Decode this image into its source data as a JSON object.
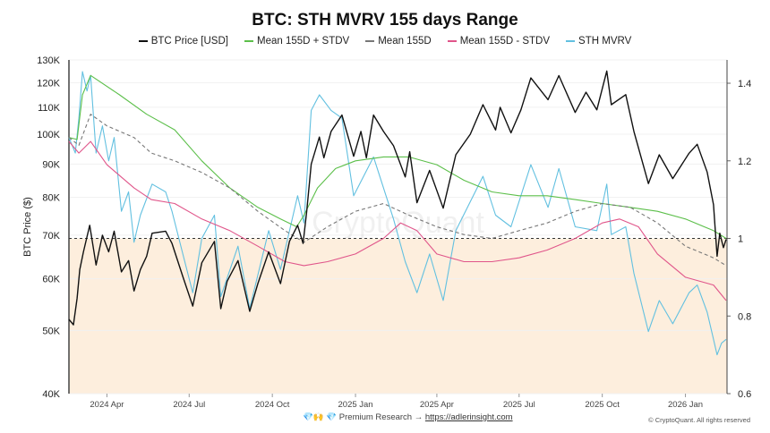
{
  "chart_data": {
    "type": "line",
    "title": "BTC: STH MVRV 155 days Range",
    "ylabel": "BTC Price ($)",
    "y_left": {
      "scale": "log",
      "range": [
        40000,
        130000
      ],
      "ticks": [
        40000,
        50000,
        60000,
        70000,
        80000,
        90000,
        100000,
        110000,
        120000,
        130000
      ],
      "tick_labels": [
        "40K",
        "50K",
        "60K",
        "70K",
        "80K",
        "90K",
        "100K",
        "110K",
        "120K",
        "130K"
      ]
    },
    "y_right": {
      "scale": "linear",
      "range": [
        0.6,
        1.46
      ],
      "ticks": [
        0.6,
        0.8,
        1,
        1.2,
        1.4
      ],
      "tick_labels": [
        "0.6",
        "0.8",
        "1",
        "1.2",
        "1.4"
      ]
    },
    "x_range": [
      "2024-02-19",
      "2026-02-16"
    ],
    "x_ticks": [
      [
        "2024-04-01",
        "2024 Apr"
      ],
      [
        "2024-07-01",
        "2024 Jul"
      ],
      [
        "2024-10-01",
        "2024 Oct"
      ],
      [
        "2025-01-01",
        "2025 Jan"
      ],
      [
        "2025-04-01",
        "2025 Apr"
      ],
      [
        "2025-07-01",
        "2025 Jul"
      ],
      [
        "2025-10-01",
        "2025 Oct"
      ],
      [
        "2026-01-01",
        "2026 Jan"
      ]
    ],
    "reference_line": 1.0,
    "shaded_below_reference": true,
    "grid": true,
    "legend_position": "top",
    "series": [
      {
        "name": "BTC Price [USD]",
        "axis": "left",
        "color": "#111111",
        "dash": false,
        "points": [
          [
            "2024-02-19",
            52000
          ],
          [
            "2024-02-24",
            51000
          ],
          [
            "2024-02-28",
            56000
          ],
          [
            "2024-03-02",
            62000
          ],
          [
            "2024-03-06",
            66000
          ],
          [
            "2024-03-13",
            72500
          ],
          [
            "2024-03-20",
            63000
          ],
          [
            "2024-03-27",
            70000
          ],
          [
            "2024-04-03",
            66000
          ],
          [
            "2024-04-09",
            71000
          ],
          [
            "2024-04-17",
            61500
          ],
          [
            "2024-04-25",
            64000
          ],
          [
            "2024-05-01",
            57500
          ],
          [
            "2024-05-08",
            62000
          ],
          [
            "2024-05-15",
            65000
          ],
          [
            "2024-05-21",
            70500
          ],
          [
            "2024-06-05",
            71000
          ],
          [
            "2024-06-12",
            68000
          ],
          [
            "2024-06-24",
            60500
          ],
          [
            "2024-07-05",
            54500
          ],
          [
            "2024-07-15",
            63500
          ],
          [
            "2024-07-29",
            68500
          ],
          [
            "2024-08-05",
            54000
          ],
          [
            "2024-08-12",
            59500
          ],
          [
            "2024-08-24",
            64000
          ],
          [
            "2024-09-06",
            53500
          ],
          [
            "2024-09-15",
            59000
          ],
          [
            "2024-09-27",
            66000
          ],
          [
            "2024-10-10",
            59000
          ],
          [
            "2024-10-20",
            68500
          ],
          [
            "2024-10-29",
            72500
          ],
          [
            "2024-11-04",
            68000
          ],
          [
            "2024-11-08",
            76000
          ],
          [
            "2024-11-13",
            90000
          ],
          [
            "2024-11-22",
            99000
          ],
          [
            "2024-11-27",
            92000
          ],
          [
            "2024-12-05",
            101000
          ],
          [
            "2024-12-17",
            107000
          ],
          [
            "2024-12-30",
            92500
          ],
          [
            "2025-01-07",
            101000
          ],
          [
            "2025-01-13",
            92000
          ],
          [
            "2025-01-21",
            107000
          ],
          [
            "2025-02-01",
            101000
          ],
          [
            "2025-02-12",
            96000
          ],
          [
            "2025-02-25",
            86000
          ],
          [
            "2025-03-02",
            94000
          ],
          [
            "2025-03-10",
            78500
          ],
          [
            "2025-03-24",
            88000
          ],
          [
            "2025-04-08",
            77000
          ],
          [
            "2025-04-22",
            93000
          ],
          [
            "2025-05-08",
            100000
          ],
          [
            "2025-05-22",
            111000
          ],
          [
            "2025-06-05",
            101500
          ],
          [
            "2025-06-10",
            110000
          ],
          [
            "2025-06-22",
            100500
          ],
          [
            "2025-07-03",
            109000
          ],
          [
            "2025-07-14",
            122000
          ],
          [
            "2025-08-02",
            113000
          ],
          [
            "2025-08-14",
            123000
          ],
          [
            "2025-09-01",
            108000
          ],
          [
            "2025-09-13",
            116000
          ],
          [
            "2025-09-25",
            109000
          ],
          [
            "2025-10-06",
            125000
          ],
          [
            "2025-10-11",
            111000
          ],
          [
            "2025-10-27",
            115000
          ],
          [
            "2025-11-05",
            101000
          ],
          [
            "2025-11-21",
            84000
          ],
          [
            "2025-12-03",
            93000
          ],
          [
            "2025-12-18",
            85500
          ],
          [
            "2026-01-05",
            93500
          ],
          [
            "2026-01-14",
            96500
          ],
          [
            "2026-01-25",
            87500
          ],
          [
            "2026-02-01",
            78000
          ],
          [
            "2026-02-05",
            65000
          ],
          [
            "2026-02-08",
            70500
          ],
          [
            "2026-02-12",
            67000
          ],
          [
            "2026-02-15",
            69000
          ]
        ]
      },
      {
        "name": "Mean 155D + STDV",
        "axis": "right",
        "color": "#5cbf4a",
        "dash": false,
        "points": [
          [
            "2024-02-19",
            1.26
          ],
          [
            "2024-02-28",
            1.255
          ],
          [
            "2024-03-05",
            1.37
          ],
          [
            "2024-03-14",
            1.42
          ],
          [
            "2024-04-15",
            1.37
          ],
          [
            "2024-05-15",
            1.32
          ],
          [
            "2024-06-15",
            1.28
          ],
          [
            "2024-07-15",
            1.2
          ],
          [
            "2024-08-15",
            1.13
          ],
          [
            "2024-09-15",
            1.08
          ],
          [
            "2024-10-10",
            1.05
          ],
          [
            "2024-10-28",
            1.03
          ],
          [
            "2024-11-05",
            1.06
          ],
          [
            "2024-11-20",
            1.13
          ],
          [
            "2024-12-10",
            1.18
          ],
          [
            "2025-01-01",
            1.2
          ],
          [
            "2025-02-01",
            1.21
          ],
          [
            "2025-03-01",
            1.21
          ],
          [
            "2025-04-01",
            1.19
          ],
          [
            "2025-05-01",
            1.15
          ],
          [
            "2025-06-01",
            1.12
          ],
          [
            "2025-07-01",
            1.11
          ],
          [
            "2025-08-01",
            1.11
          ],
          [
            "2025-09-01",
            1.1
          ],
          [
            "2025-10-01",
            1.09
          ],
          [
            "2025-11-01",
            1.08
          ],
          [
            "2025-12-01",
            1.07
          ],
          [
            "2026-01-01",
            1.05
          ],
          [
            "2026-02-01",
            1.02
          ],
          [
            "2026-02-15",
            1.0
          ]
        ]
      },
      {
        "name": "Mean 155D",
        "axis": "right",
        "color": "#777777",
        "dash": true,
        "points": [
          [
            "2024-02-19",
            1.26
          ],
          [
            "2024-03-01",
            1.24
          ],
          [
            "2024-03-14",
            1.32
          ],
          [
            "2024-04-01",
            1.29
          ],
          [
            "2024-05-01",
            1.26
          ],
          [
            "2024-05-20",
            1.22
          ],
          [
            "2024-06-15",
            1.2
          ],
          [
            "2024-07-15",
            1.17
          ],
          [
            "2024-08-15",
            1.13
          ],
          [
            "2024-09-15",
            1.07
          ],
          [
            "2024-10-15",
            1.02
          ],
          [
            "2024-11-05",
            0.99
          ],
          [
            "2024-12-01",
            1.03
          ],
          [
            "2025-01-01",
            1.07
          ],
          [
            "2025-02-01",
            1.09
          ],
          [
            "2025-03-01",
            1.06
          ],
          [
            "2025-04-01",
            1.03
          ],
          [
            "2025-05-01",
            1.01
          ],
          [
            "2025-06-01",
            1.0
          ],
          [
            "2025-07-01",
            1.02
          ],
          [
            "2025-08-01",
            1.04
          ],
          [
            "2025-09-01",
            1.07
          ],
          [
            "2025-10-01",
            1.09
          ],
          [
            "2025-11-01",
            1.08
          ],
          [
            "2025-12-01",
            1.04
          ],
          [
            "2026-01-01",
            0.98
          ],
          [
            "2026-02-01",
            0.95
          ],
          [
            "2026-02-15",
            0.93
          ]
        ]
      },
      {
        "name": "Mean 155D - STDV",
        "axis": "right",
        "color": "#e0558a",
        "dash": false,
        "points": [
          [
            "2024-02-19",
            1.25
          ],
          [
            "2024-03-01",
            1.22
          ],
          [
            "2024-03-14",
            1.25
          ],
          [
            "2024-04-01",
            1.19
          ],
          [
            "2024-05-01",
            1.13
          ],
          [
            "2024-05-20",
            1.1
          ],
          [
            "2024-06-15",
            1.09
          ],
          [
            "2024-07-15",
            1.05
          ],
          [
            "2024-08-15",
            1.02
          ],
          [
            "2024-09-15",
            0.98
          ],
          [
            "2024-10-15",
            0.94
          ],
          [
            "2024-11-05",
            0.93
          ],
          [
            "2024-12-01",
            0.94
          ],
          [
            "2025-01-01",
            0.96
          ],
          [
            "2025-02-01",
            1.0
          ],
          [
            "2025-02-20",
            1.04
          ],
          [
            "2025-03-10",
            1.02
          ],
          [
            "2025-04-01",
            0.96
          ],
          [
            "2025-05-01",
            0.94
          ],
          [
            "2025-06-01",
            0.94
          ],
          [
            "2025-07-01",
            0.95
          ],
          [
            "2025-08-01",
            0.97
          ],
          [
            "2025-09-01",
            1.0
          ],
          [
            "2025-10-01",
            1.04
          ],
          [
            "2025-10-20",
            1.05
          ],
          [
            "2025-11-10",
            1.03
          ],
          [
            "2025-12-01",
            0.96
          ],
          [
            "2026-01-01",
            0.9
          ],
          [
            "2026-02-01",
            0.88
          ],
          [
            "2026-02-15",
            0.84
          ]
        ]
      },
      {
        "name": "STH MVRV",
        "axis": "right",
        "color": "#62c0e0",
        "dash": false,
        "points": [
          [
            "2024-02-19",
            1.26
          ],
          [
            "2024-02-26",
            1.22
          ],
          [
            "2024-03-01",
            1.31
          ],
          [
            "2024-03-05",
            1.43
          ],
          [
            "2024-03-10",
            1.38
          ],
          [
            "2024-03-14",
            1.42
          ],
          [
            "2024-03-20",
            1.22
          ],
          [
            "2024-03-27",
            1.29
          ],
          [
            "2024-04-03",
            1.2
          ],
          [
            "2024-04-09",
            1.26
          ],
          [
            "2024-04-17",
            1.07
          ],
          [
            "2024-04-25",
            1.12
          ],
          [
            "2024-05-01",
            0.99
          ],
          [
            "2024-05-08",
            1.06
          ],
          [
            "2024-05-21",
            1.14
          ],
          [
            "2024-06-05",
            1.12
          ],
          [
            "2024-06-12",
            1.07
          ],
          [
            "2024-06-24",
            0.96
          ],
          [
            "2024-07-05",
            0.86
          ],
          [
            "2024-07-15",
            1.0
          ],
          [
            "2024-07-29",
            1.06
          ],
          [
            "2024-08-05",
            0.85
          ],
          [
            "2024-08-24",
            0.98
          ],
          [
            "2024-09-06",
            0.82
          ],
          [
            "2024-09-27",
            1.02
          ],
          [
            "2024-10-10",
            0.92
          ],
          [
            "2024-10-29",
            1.11
          ],
          [
            "2024-11-05",
            1.04
          ],
          [
            "2024-11-13",
            1.33
          ],
          [
            "2024-11-22",
            1.37
          ],
          [
            "2024-12-05",
            1.33
          ],
          [
            "2024-12-17",
            1.31
          ],
          [
            "2024-12-30",
            1.11
          ],
          [
            "2025-01-21",
            1.21
          ],
          [
            "2025-02-12",
            1.05
          ],
          [
            "2025-02-25",
            0.94
          ],
          [
            "2025-03-10",
            0.86
          ],
          [
            "2025-03-24",
            0.96
          ],
          [
            "2025-04-08",
            0.84
          ],
          [
            "2025-04-22",
            1.02
          ],
          [
            "2025-05-22",
            1.16
          ],
          [
            "2025-06-05",
            1.06
          ],
          [
            "2025-06-22",
            1.03
          ],
          [
            "2025-07-14",
            1.19
          ],
          [
            "2025-08-02",
            1.08
          ],
          [
            "2025-08-14",
            1.18
          ],
          [
            "2025-09-01",
            1.03
          ],
          [
            "2025-09-25",
            1.02
          ],
          [
            "2025-10-06",
            1.14
          ],
          [
            "2025-10-11",
            1.01
          ],
          [
            "2025-10-27",
            1.03
          ],
          [
            "2025-11-05",
            0.91
          ],
          [
            "2025-11-21",
            0.76
          ],
          [
            "2025-12-03",
            0.84
          ],
          [
            "2025-12-18",
            0.78
          ],
          [
            "2026-01-05",
            0.86
          ],
          [
            "2026-01-14",
            0.88
          ],
          [
            "2026-01-25",
            0.81
          ],
          [
            "2026-02-01",
            0.74
          ],
          [
            "2026-02-05",
            0.7
          ],
          [
            "2026-02-10",
            0.73
          ],
          [
            "2026-02-15",
            0.74
          ]
        ]
      }
    ]
  },
  "watermark": "CryptoQuant",
  "footer": {
    "emoji": "💎🙌 💎",
    "text": "Premium Research →",
    "link": "https://adlerinsight.com",
    "copyright": "© CryptoQuant. All rights reserved"
  }
}
